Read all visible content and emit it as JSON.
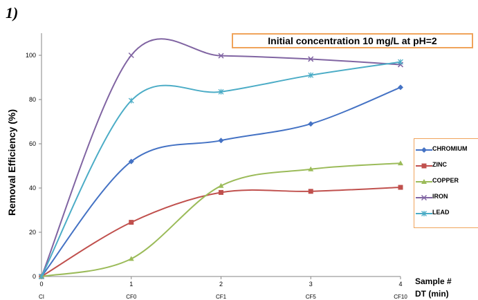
{
  "panel_label": "1)",
  "chart_data": {
    "type": "line",
    "title": "Initial concentration 10 mg/L at pH=2",
    "ylabel": "Removal Efficiency (%)",
    "xlabel_line1": "Sample #",
    "xlabel_line2": "DT  (min)",
    "x": [
      0,
      1,
      2,
      3,
      4
    ],
    "x_sample_labels": [
      "CI",
      "CF0",
      "CF1",
      "CF5",
      "CF10"
    ],
    "ylim": [
      0,
      110
    ],
    "yticks": [
      0,
      20,
      40,
      60,
      80,
      100
    ],
    "grid": false,
    "legend_position": "right",
    "series": [
      {
        "name": "CHROMIUM",
        "color": "#4472c4",
        "marker": "diamond",
        "values": [
          0,
          52,
          61.5,
          69,
          85.5
        ]
      },
      {
        "name": "ZINC",
        "color": "#c0504d",
        "marker": "square",
        "values": [
          0,
          24.5,
          38,
          38.5,
          40.3
        ]
      },
      {
        "name": "COPPER",
        "color": "#9bbb59",
        "marker": "triangle",
        "values": [
          0,
          8,
          41,
          48.5,
          51.2
        ]
      },
      {
        "name": "IRON",
        "color": "#8064a2",
        "marker": "x",
        "values": [
          0,
          100,
          99.8,
          98.3,
          95.8
        ]
      },
      {
        "name": "LEAD",
        "color": "#4bacc6",
        "marker": "star",
        "values": [
          0,
          79.5,
          83.5,
          91,
          97
        ]
      }
    ]
  }
}
